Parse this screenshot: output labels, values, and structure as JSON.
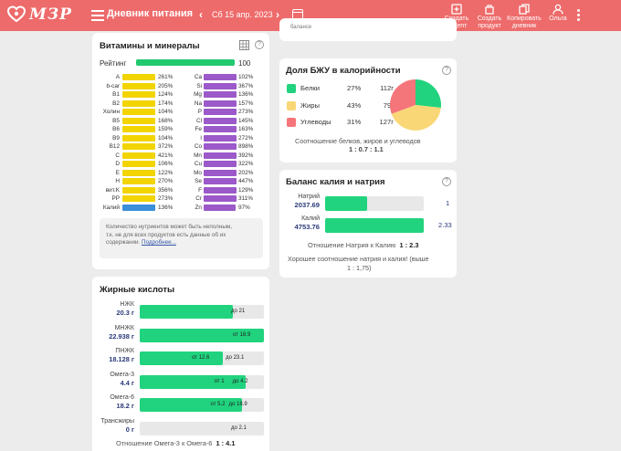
{
  "header": {
    "logo_text": "МЗР",
    "page_title": "Дневник питания",
    "date": "Сб 15 апр. 2023",
    "actions": [
      {
        "label1": "Создать",
        "label2": "рецепт"
      },
      {
        "label1": "Создать",
        "label2": "продукт"
      },
      {
        "label1": "Копировать",
        "label2": "дневник"
      },
      {
        "label1": "",
        "label2": "Ольга"
      }
    ],
    "colors": {
      "bar": "#ee6b6b"
    }
  },
  "vitamins": {
    "title": "Витамины и минералы",
    "rating_label": "Рейтинг",
    "rating_value": "100",
    "rating_fraction": 1.0,
    "left": [
      {
        "name": "A",
        "value": "261%",
        "fill": 1.0
      },
      {
        "name": "b-car",
        "value": "205%",
        "fill": 1.0
      },
      {
        "name": "B1",
        "value": "124%",
        "fill": 1.0
      },
      {
        "name": "B2",
        "value": "174%",
        "fill": 1.0
      },
      {
        "name": "Холин",
        "value": "104%",
        "fill": 1.0
      },
      {
        "name": "B5",
        "value": "168%",
        "fill": 1.0
      },
      {
        "name": "B6",
        "value": "159%",
        "fill": 1.0
      },
      {
        "name": "B9",
        "value": "104%",
        "fill": 1.0
      },
      {
        "name": "B12",
        "value": "372%",
        "fill": 1.0
      },
      {
        "name": "C",
        "value": "421%",
        "fill": 1.0
      },
      {
        "name": "D",
        "value": "106%",
        "fill": 1.0
      },
      {
        "name": "E",
        "value": "122%",
        "fill": 1.0
      },
      {
        "name": "H",
        "value": "270%",
        "fill": 1.0
      },
      {
        "name": "вит.K",
        "value": "356%",
        "fill": 1.0
      },
      {
        "name": "PP",
        "value": "273%",
        "fill": 1.0
      },
      {
        "name": "Калий",
        "value": "136%",
        "fill": 1.0
      }
    ],
    "right": [
      {
        "name": "Ca",
        "value": "102%",
        "fill": 1.0
      },
      {
        "name": "Si",
        "value": "367%",
        "fill": 1.0
      },
      {
        "name": "Mg",
        "value": "136%",
        "fill": 1.0
      },
      {
        "name": "Na",
        "value": "157%",
        "fill": 1.0
      },
      {
        "name": "P",
        "value": "273%",
        "fill": 1.0
      },
      {
        "name": "Cl",
        "value": "145%",
        "fill": 1.0
      },
      {
        "name": "Fe",
        "value": "163%",
        "fill": 1.0
      },
      {
        "name": "I",
        "value": "272%",
        "fill": 1.0
      },
      {
        "name": "Co",
        "value": "898%",
        "fill": 1.0
      },
      {
        "name": "Mn",
        "value": "392%",
        "fill": 1.0
      },
      {
        "name": "Cu",
        "value": "322%",
        "fill": 1.0
      },
      {
        "name": "Mo",
        "value": "202%",
        "fill": 1.0
      },
      {
        "name": "Se",
        "value": "447%",
        "fill": 1.0
      },
      {
        "name": "F",
        "value": "129%",
        "fill": 1.0
      },
      {
        "name": "Cr",
        "value": "311%",
        "fill": 1.0
      },
      {
        "name": "Zn",
        "value": "97%",
        "fill": 0.97
      }
    ],
    "note_line1": "Количество нутриентов может быть неполным,",
    "note_line2": "т.к. не для всех продуктов есть данные об их",
    "note_line3": "содержании.",
    "note_link": "Подробнее...",
    "colors": {
      "vitamin": "#f2d400",
      "potassium": "#3a8fd8",
      "mineral": "#9b59c9",
      "rating": "#21c96e"
    }
  },
  "fatty_acids": {
    "title": "Жирные кислоты",
    "rows": [
      {
        "name": "НЖК",
        "value": "20.3 г",
        "fill": 0.75,
        "from": "",
        "to": "до 21"
      },
      {
        "name": "МНЖК",
        "value": "22.938 г",
        "fill": 1.0,
        "from": "от 18.9",
        "to": ""
      },
      {
        "name": "ПНЖК",
        "value": "18.128 г",
        "fill": 0.67,
        "from": "от 12.6",
        "to": "до 23.1"
      },
      {
        "name": "Омега-3",
        "value": "4.4 г",
        "fill": 0.85,
        "from": "от 1",
        "to": "до 4.2"
      },
      {
        "name": "Омега-6",
        "value": "18.2 г",
        "fill": 0.82,
        "from": "от 5.2",
        "to": "до 18.9"
      },
      {
        "name": "Трансжиры",
        "value": "0 г",
        "fill": 0.0,
        "from": "",
        "to": "до 2.1"
      }
    ],
    "ratio_text": "Отношение Омега-3 к Омега-6",
    "ratio_value": "1 : 4.1"
  },
  "bju": {
    "title": "Доля БЖУ в калорийности",
    "items": [
      {
        "name": "Белки",
        "pct": "27%",
        "grams": "112г",
        "color": "#21d37e",
        "share": 0.27
      },
      {
        "name": "Жиры",
        "pct": "43%",
        "grams": "79г",
        "color": "#f9d776",
        "share": 0.43
      },
      {
        "name": "Углеводы",
        "pct": "31%",
        "grams": "127г",
        "color": "#f4757a",
        "share": 0.31
      }
    ],
    "caption": "Соотношение белков, жиров и углеводов",
    "caption_value": "1 : 0.7 : 1.1"
  },
  "potassium_sodium": {
    "title": "Баланс калия и натрия",
    "rows": [
      {
        "name": "Натрий",
        "value": "2037.69",
        "fill": 0.43,
        "num": "1"
      },
      {
        "name": "Калий",
        "value": "4753.76",
        "fill": 1.0,
        "num": "2.33"
      }
    ],
    "ratio_text": "Отношение Натрия к Калию",
    "ratio_value": "1 : 2.3",
    "summary1": "Хорошее соотношение натрия и калия! (выше",
    "summary2": "1 : 1,75)"
  },
  "partial_text": "балансе"
}
